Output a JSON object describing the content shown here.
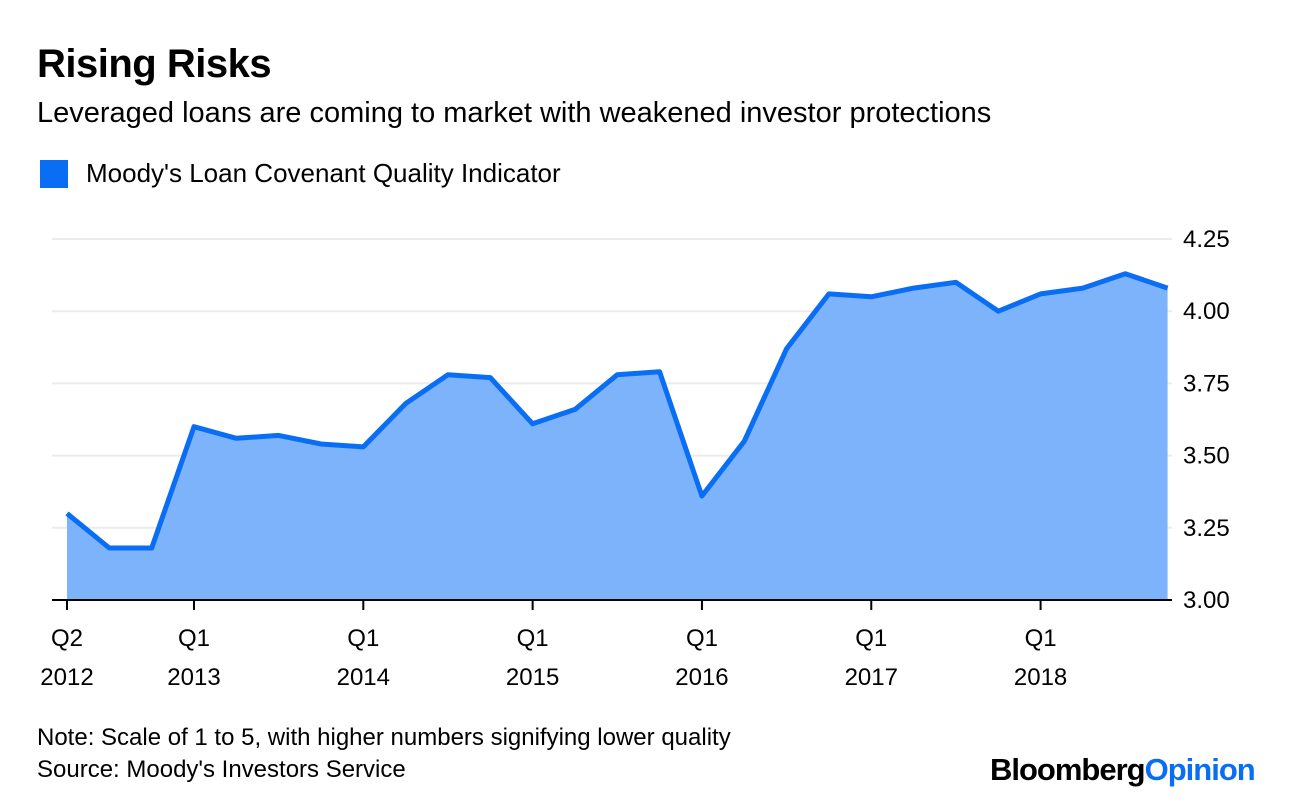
{
  "header": {
    "title": "Rising Risks",
    "subtitle": "Leveraged loans are coming to market with weakened investor protections"
  },
  "colors": {
    "line": "#0a6ef5",
    "fill": "#7db3fa",
    "grid": "#ebebeb"
  },
  "chart_data": {
    "type": "area",
    "title": "Rising Risks",
    "subtitle": "Leveraged loans are coming to market with weakened investor protections",
    "legend": [
      {
        "label": "Moody's Loan Covenant Quality Indicator",
        "color": "#0a6ef5"
      }
    ],
    "legend_placement": "top-left",
    "x": [
      "Q2 2012",
      "Q3 2012",
      "Q4 2012",
      "Q1 2013",
      "Q2 2013",
      "Q3 2013",
      "Q4 2013",
      "Q1 2014",
      "Q2 2014",
      "Q3 2014",
      "Q4 2014",
      "Q1 2015",
      "Q2 2015",
      "Q3 2015",
      "Q4 2015",
      "Q1 2016",
      "Q2 2016",
      "Q3 2016",
      "Q4 2016",
      "Q1 2017",
      "Q2 2017",
      "Q3 2017",
      "Q4 2017",
      "Q1 2018",
      "Q2 2018",
      "Q3 2018",
      "Q4 2018"
    ],
    "series": [
      {
        "name": "Moody's Loan Covenant Quality Indicator",
        "values": [
          3.3,
          3.18,
          3.18,
          3.6,
          3.56,
          3.57,
          3.54,
          3.53,
          3.68,
          3.78,
          3.77,
          3.61,
          3.66,
          3.78,
          3.79,
          3.36,
          3.55,
          3.87,
          4.06,
          4.05,
          4.08,
          4.1,
          4.0,
          4.06,
          4.08,
          4.13,
          4.08
        ]
      }
    ],
    "ylim": [
      3.0,
      4.25
    ],
    "y_ticks": [
      "3.00",
      "3.25",
      "3.50",
      "3.75",
      "4.00",
      "4.25"
    ],
    "y_axis_side": "right",
    "x_ticks": [
      {
        "index": 0,
        "line1": "Q2",
        "line2": "2012"
      },
      {
        "index": 3,
        "line1": "Q1",
        "line2": "2013"
      },
      {
        "index": 7,
        "line1": "Q1",
        "line2": "2014"
      },
      {
        "index": 11,
        "line1": "Q1",
        "line2": "2015"
      },
      {
        "index": 15,
        "line1": "Q1",
        "line2": "2016"
      },
      {
        "index": 19,
        "line1": "Q1",
        "line2": "2017"
      },
      {
        "index": 23,
        "line1": "Q1",
        "line2": "2018"
      }
    ],
    "grid": true
  },
  "footer": {
    "note": "Note: Scale of 1 to 5, with higher numbers signifying lower quality",
    "source": "Source: Moody's Investors Service",
    "logo_part1": "Bloomberg",
    "logo_part2": "Opinion"
  }
}
